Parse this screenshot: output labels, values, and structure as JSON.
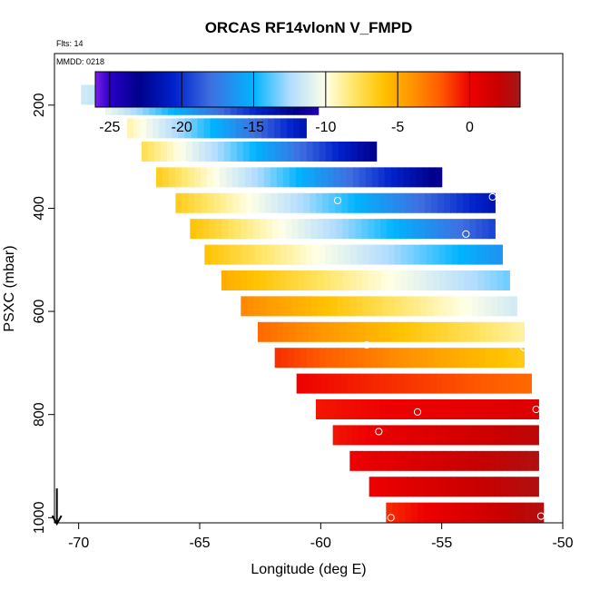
{
  "chart_data": {
    "type": "heatmap",
    "title": "ORCAS RF14vlonN V_FMPD",
    "flts_label": "Flts: 14",
    "mmdd_label": "MMDD: 0218",
    "xlabel": "Longitude (deg E)",
    "ylabel": "PSXC (mbar)",
    "xlim": [
      -71,
      -50
    ],
    "ylim": [
      1010,
      100
    ],
    "x_ticks": [
      -70,
      -65,
      -60,
      -55,
      -50
    ],
    "y_ticks": [
      200,
      400,
      600,
      800,
      1000
    ],
    "colorbar": {
      "range": [
        -26,
        3.5
      ],
      "ticks": [
        -25,
        -20,
        -15,
        -10,
        -5,
        0
      ],
      "stops": [
        {
          "v": -26,
          "color": "#7a1fe8"
        },
        {
          "v": -25,
          "color": "#2a00c8"
        },
        {
          "v": -23,
          "color": "#00008a"
        },
        {
          "v": -20.5,
          "color": "#0022cc"
        },
        {
          "v": -18,
          "color": "#3f6fe0"
        },
        {
          "v": -15,
          "color": "#00b4ff"
        },
        {
          "v": -12.5,
          "color": "#b0dcff"
        },
        {
          "v": -10,
          "color": "#ffffe6"
        },
        {
          "v": -8,
          "color": "#ffe566"
        },
        {
          "v": -6,
          "color": "#ffc200"
        },
        {
          "v": -4,
          "color": "#ff9400"
        },
        {
          "v": -2,
          "color": "#ff5a00"
        },
        {
          "v": 0,
          "color": "#ee0000"
        },
        {
          "v": 2,
          "color": "#c80000"
        },
        {
          "v": 3.5,
          "color": "#a41818"
        }
      ]
    },
    "rows": [
      {
        "p": 180,
        "lon_start": -69.9,
        "lon_end": -63.8,
        "v_start": -11.5,
        "v_end": -15.5
      },
      {
        "p": 200,
        "lon_start": -68.9,
        "lon_end": -60.1,
        "v_start": -10.5,
        "v_end": -24.5
      },
      {
        "p": 245,
        "lon_start": -68.0,
        "lon_end": -60.6,
        "v_start": -9.0,
        "v_end": -21.5
      },
      {
        "p": 290,
        "lon_start": -67.4,
        "lon_end": -57.7,
        "v_start": -7.5,
        "v_end": -23.0
      },
      {
        "p": 340,
        "lon_start": -66.8,
        "lon_end": -55.0,
        "v_start": -6.5,
        "v_end": -23.5
      },
      {
        "p": 390,
        "lon_start": -66.0,
        "lon_end": -52.8,
        "v_start": -6.5,
        "v_end": -21.5
      },
      {
        "p": 440,
        "lon_start": -65.4,
        "lon_end": -52.8,
        "v_start": -6.0,
        "v_end": -19.5
      },
      {
        "p": 490,
        "lon_start": -64.8,
        "lon_end": -52.5,
        "v_start": -6.0,
        "v_end": -16.5
      },
      {
        "p": 540,
        "lon_start": -64.1,
        "lon_end": -52.2,
        "v_start": -5.0,
        "v_end": -13.5
      },
      {
        "p": 590,
        "lon_start": -63.3,
        "lon_end": -51.9,
        "v_start": -3.5,
        "v_end": -11.5
      },
      {
        "p": 640,
        "lon_start": -62.6,
        "lon_end": -51.6,
        "v_start": -2.5,
        "v_end": -9.0
      },
      {
        "p": 690,
        "lon_start": -61.9,
        "lon_end": -51.6,
        "v_start": -1.0,
        "v_end": -6.5
      },
      {
        "p": 740,
        "lon_start": -61.0,
        "lon_end": -51.3,
        "v_start": 0.0,
        "v_end": -2.5
      },
      {
        "p": 790,
        "lon_start": -60.2,
        "lon_end": -51.0,
        "v_start": -0.5,
        "v_end": 1.0
      },
      {
        "p": 840,
        "lon_start": -59.5,
        "lon_end": -51.0,
        "v_start": -0.5,
        "v_end": 2.5
      },
      {
        "p": 890,
        "lon_start": -58.8,
        "lon_end": -51.0,
        "v_start": 0.0,
        "v_end": 3.0
      },
      {
        "p": 940,
        "lon_start": -58.0,
        "lon_end": -51.0,
        "v_start": 0.0,
        "v_end": 3.0
      },
      {
        "p": 990,
        "lon_start": -57.3,
        "lon_end": -50.8,
        "v_start": -1.0,
        "v_end": 3.0
      }
    ],
    "flight_markers": [
      {
        "lon": -67.1,
        "p": 180
      },
      {
        "lon": -63.9,
        "p": 180
      },
      {
        "lon": -60.3,
        "p": 248
      },
      {
        "lon": -59.3,
        "p": 385
      },
      {
        "lon": -54.0,
        "p": 450
      },
      {
        "lon": -52.9,
        "p": 378
      },
      {
        "lon": -58.1,
        "p": 665
      },
      {
        "lon": -51.6,
        "p": 670
      },
      {
        "lon": -56.0,
        "p": 795
      },
      {
        "lon": -51.1,
        "p": 790
      },
      {
        "lon": -57.6,
        "p": 833
      },
      {
        "lon": -57.1,
        "p": 1000
      },
      {
        "lon": -50.9,
        "p": 997
      }
    ],
    "wind_arrow": {
      "lon": -70.9,
      "p": 975
    }
  }
}
